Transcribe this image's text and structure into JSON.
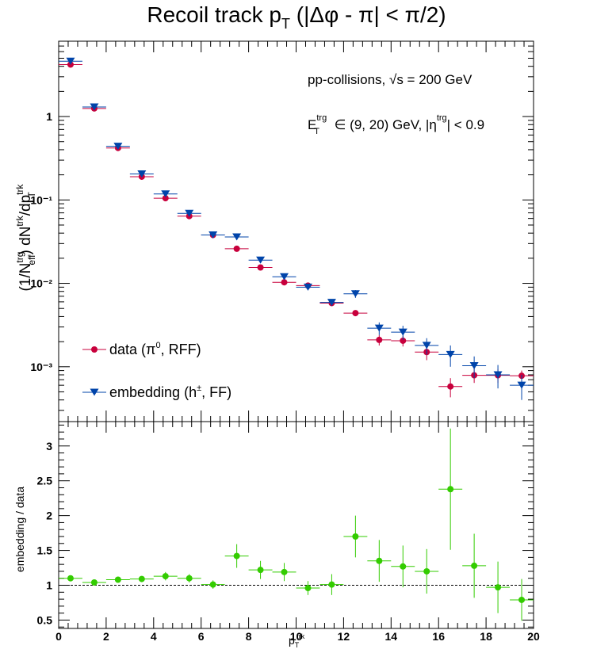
{
  "title": {
    "main": "Recoil track p",
    "sub": "T",
    "rest": " (|Δφ - π| < π/2)"
  },
  "annotations": {
    "line1": "pp-collisions, √s = 200 GeV",
    "line2_E": "E",
    "line2_E_sup": "trg",
    "line2_E_sub": "T",
    "line2_mid": " ∈ (9, 20) GeV, |η",
    "line2_eta_sup": "trg",
    "line2_end": "| < 0.9"
  },
  "legend": {
    "data_label": "data (π",
    "data_sup": "0",
    "data_end": ", RFF)",
    "emb_label": "embedding (h",
    "emb_sup": "±",
    "emb_end": ", FF)",
    "data_color": "#c8003c",
    "emb_color": "#0044aa",
    "placement": "bottom-left"
  },
  "chart_data": [
    {
      "type": "scatter",
      "title": "Recoil track pT (|Δφ - π| < π/2)",
      "ylabel": "(1/N_eff^trg) dN^trk/dp_T^trk",
      "yscale": "log",
      "xlim": [
        0,
        20
      ],
      "ylim": [
        0.00022,
        8
      ],
      "y_ticks": [
        "10⁻³",
        "10⁻²",
        "10⁻¹",
        "1"
      ],
      "x_bin_halfwidth": 0.5,
      "x": [
        0.5,
        1.5,
        2.5,
        3.5,
        4.5,
        5.5,
        6.5,
        7.5,
        8.5,
        9.5,
        10.5,
        11.5,
        12.5,
        13.5,
        14.5,
        15.5,
        16.5,
        17.5,
        18.5,
        19.5
      ],
      "series": [
        {
          "name": "data (π0, RFF)",
          "color": "#c8003c",
          "values": [
            4.2,
            1.25,
            0.42,
            0.19,
            0.105,
            0.064,
            0.038,
            0.026,
            0.0155,
            0.0103,
            0.0094,
            0.0058,
            0.0044,
            0.0021,
            0.00205,
            0.0015,
            0.00058,
            0.00079,
            0.00079,
            0.00078
          ],
          "errors": [
            0,
            0,
            0,
            0,
            0,
            0,
            0,
            0,
            0,
            0.0005,
            0.0005,
            0.0004,
            0.0003,
            0.0003,
            0.0003,
            0.0003,
            0.00015,
            0.00015,
            0.00015,
            0.00012
          ]
        },
        {
          "name": "embedding (h±, FF)",
          "color": "#0044aa",
          "values": [
            4.6,
            1.3,
            0.44,
            0.205,
            0.118,
            0.069,
            0.038,
            0.036,
            0.019,
            0.012,
            0.009,
            0.0059,
            0.0075,
            0.0029,
            0.0026,
            0.0018,
            0.0014,
            0.00103,
            0.0008,
            0.0006
          ],
          "errors": [
            0,
            0,
            0,
            0,
            0,
            0,
            0,
            0,
            0,
            0.0007,
            0.0007,
            0.0005,
            0.0008,
            0.0005,
            0.0005,
            0.0004,
            0.0004,
            0.0003,
            0.00025,
            0.0002
          ]
        }
      ]
    },
    {
      "type": "scatter",
      "xlabel": "p",
      "xlabel_sub": "T",
      "xlabel_sup": "trk",
      "ylabel": "embedding / data",
      "xlim": [
        0,
        20
      ],
      "ylim": [
        0.38,
        3.35
      ],
      "x_ticks": [
        0,
        2,
        4,
        6,
        8,
        10,
        12,
        14,
        16,
        18,
        20
      ],
      "y_ticks": [
        0.5,
        1,
        1.5,
        2,
        2.5,
        3
      ],
      "reference_line": 1,
      "x_bin_halfwidth": 0.5,
      "x": [
        0.5,
        1.5,
        2.5,
        3.5,
        4.5,
        5.5,
        6.5,
        7.5,
        8.5,
        9.5,
        10.5,
        11.5,
        12.5,
        13.5,
        14.5,
        15.5,
        16.5,
        17.5,
        18.5,
        19.5
      ],
      "series": [
        {
          "name": "embedding / data",
          "color": "#33cc00",
          "values": [
            1.1,
            1.04,
            1.08,
            1.09,
            1.13,
            1.1,
            1.01,
            1.42,
            1.22,
            1.19,
            0.96,
            1.01,
            1.7,
            1.35,
            1.27,
            1.2,
            2.38,
            1.28,
            0.97,
            0.79
          ],
          "errors": [
            0.03,
            0.03,
            0.03,
            0.04,
            0.06,
            0.06,
            0.06,
            0.17,
            0.13,
            0.13,
            0.1,
            0.15,
            0.3,
            0.3,
            0.3,
            0.32,
            0.87,
            0.46,
            0.37,
            0.3
          ]
        }
      ]
    }
  ]
}
